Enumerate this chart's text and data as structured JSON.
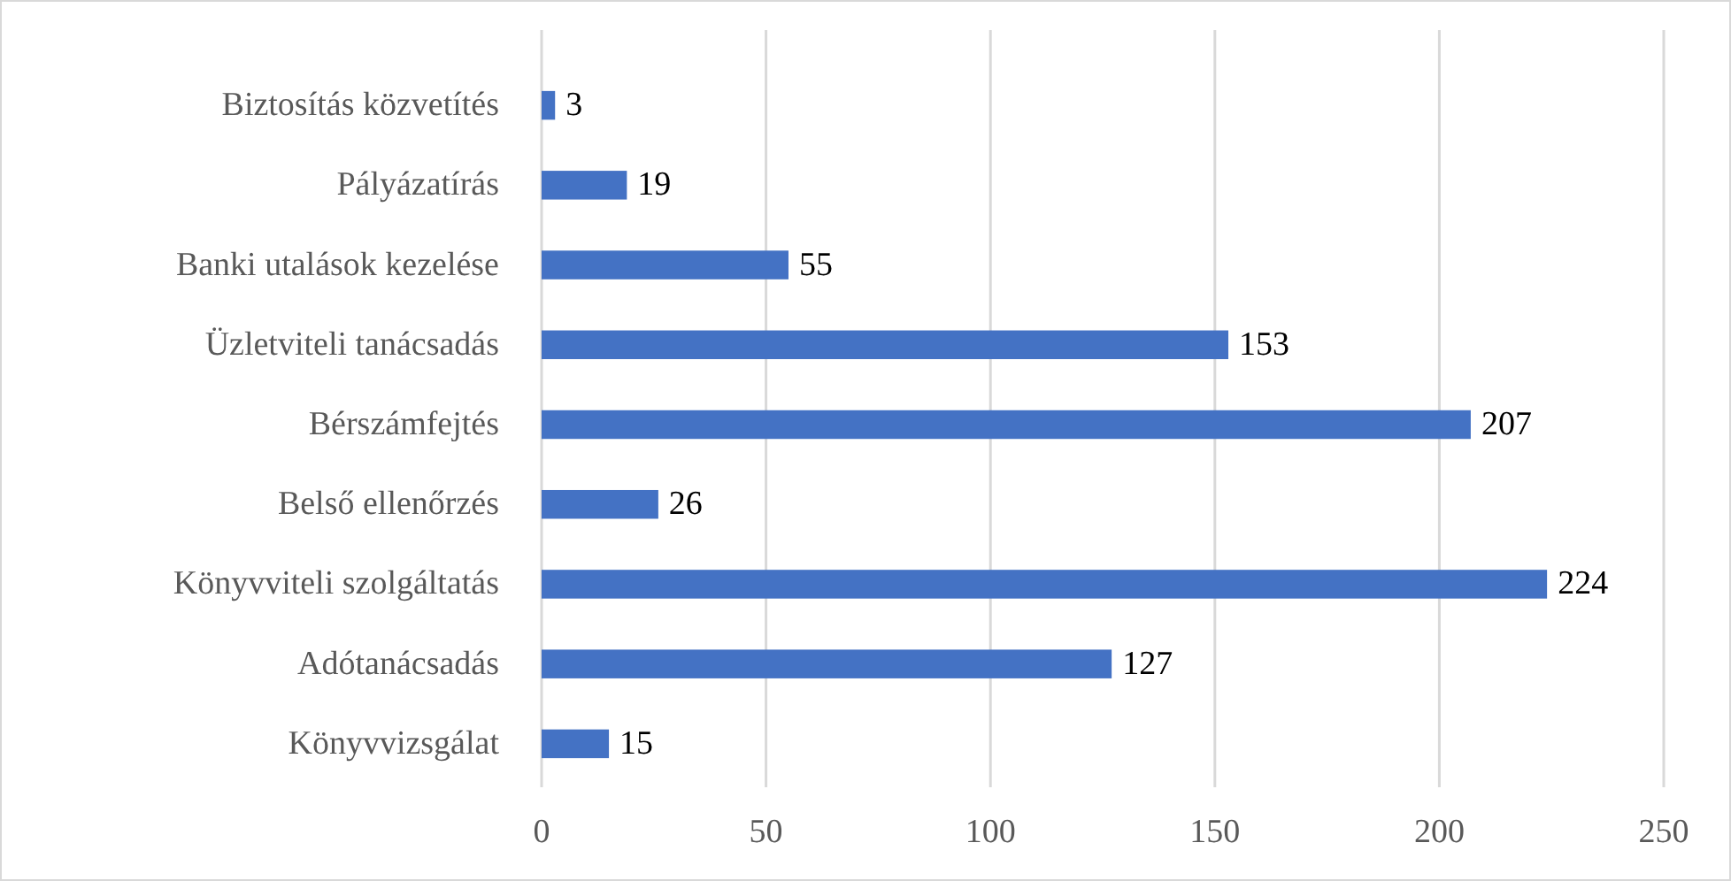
{
  "chart_data": {
    "type": "bar",
    "orientation": "horizontal",
    "categories": [
      "Biztosítás közvetítés",
      "Pályázatírás",
      "Banki utalások kezelése",
      "Üzletviteli tanácsadás",
      "Bérszámfejtés",
      "Belső ellenőrzés",
      "Könyvviteli szolgáltatás",
      "Adótanácsadás",
      "Könyvvizsgálat"
    ],
    "values": [
      3,
      19,
      55,
      153,
      207,
      26,
      224,
      127,
      15
    ],
    "color": "#4472c4",
    "xlim": [
      0,
      250
    ],
    "xticks": [
      0,
      50,
      100,
      150,
      200,
      250
    ],
    "grid": "x",
    "data_labels": true
  }
}
